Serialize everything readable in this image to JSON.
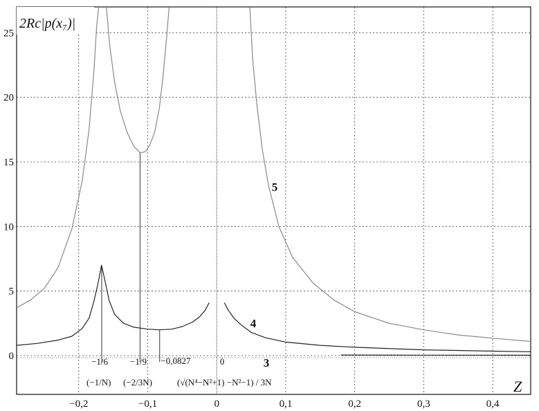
{
  "chart_data": {
    "type": "line",
    "ylabel": "2Rc|p(x₇)|",
    "xlabel": "Z",
    "xlim": [
      -0.29,
      0.455
    ],
    "ylim": [
      -3,
      27
    ],
    "grid": true,
    "x_ticks": [
      {
        "value": -0.2,
        "label": "−0,2"
      },
      {
        "value": -0.1,
        "label": "−0,1"
      },
      {
        "value": 0,
        "label": "0"
      },
      {
        "value": 0.1,
        "label": "0,1"
      },
      {
        "value": 0.2,
        "label": "0,2"
      },
      {
        "value": 0.3,
        "label": "0,3"
      },
      {
        "value": 0.4,
        "label": "0,4"
      }
    ],
    "y_ticks": [
      {
        "value": 0,
        "label": "0"
      },
      {
        "value": 5,
        "label": "5"
      },
      {
        "value": 10,
        "label": "10"
      },
      {
        "value": 15,
        "label": "15"
      },
      {
        "value": 20,
        "label": "20"
      },
      {
        "value": 25,
        "label": "25"
      }
    ],
    "series": [
      {
        "name": "5",
        "color": "#888888",
        "segments": [
          [
            {
              "x": -0.29,
              "y": 3.7
            },
            {
              "x": -0.27,
              "y": 4.3
            },
            {
              "x": -0.25,
              "y": 5.2
            },
            {
              "x": -0.23,
              "y": 6.8
            },
            {
              "x": -0.21,
              "y": 9.8
            },
            {
              "x": -0.195,
              "y": 13.5
            },
            {
              "x": -0.185,
              "y": 17.5
            },
            {
              "x": -0.178,
              "y": 22
            },
            {
              "x": -0.174,
              "y": 25.5
            },
            {
              "x": -0.171,
              "y": 27
            }
          ],
          [
            {
              "x": -0.16,
              "y": 27
            },
            {
              "x": -0.155,
              "y": 24
            },
            {
              "x": -0.148,
              "y": 21.2
            },
            {
              "x": -0.14,
              "y": 19
            },
            {
              "x": -0.13,
              "y": 17.3
            },
            {
              "x": -0.12,
              "y": 16.2
            },
            {
              "x": -0.111,
              "y": 15.7
            },
            {
              "x": -0.103,
              "y": 15.8
            },
            {
              "x": -0.097,
              "y": 16.3
            },
            {
              "x": -0.09,
              "y": 17.3
            },
            {
              "x": -0.083,
              "y": 19.2
            },
            {
              "x": -0.078,
              "y": 21.5
            },
            {
              "x": -0.072,
              "y": 25
            },
            {
              "x": -0.069,
              "y": 27
            }
          ],
          [
            {
              "x": 0.048,
              "y": 27
            },
            {
              "x": 0.052,
              "y": 23
            },
            {
              "x": 0.058,
              "y": 19.5
            },
            {
              "x": 0.066,
              "y": 16
            },
            {
              "x": 0.075,
              "y": 13.2
            },
            {
              "x": 0.09,
              "y": 10
            },
            {
              "x": 0.11,
              "y": 7.6
            },
            {
              "x": 0.14,
              "y": 5.6
            },
            {
              "x": 0.17,
              "y": 4.3
            },
            {
              "x": 0.2,
              "y": 3.4
            },
            {
              "x": 0.25,
              "y": 2.5
            },
            {
              "x": 0.3,
              "y": 2
            },
            {
              "x": 0.35,
              "y": 1.6
            },
            {
              "x": 0.4,
              "y": 1.35
            },
            {
              "x": 0.455,
              "y": 1.1
            }
          ]
        ]
      },
      {
        "name": "4",
        "color": "#222222",
        "segments": [
          [
            {
              "x": -0.29,
              "y": 0.8
            },
            {
              "x": -0.26,
              "y": 0.95
            },
            {
              "x": -0.23,
              "y": 1.2
            },
            {
              "x": -0.21,
              "y": 1.5
            },
            {
              "x": -0.195,
              "y": 2.1
            },
            {
              "x": -0.185,
              "y": 2.9
            },
            {
              "x": -0.178,
              "y": 4.2
            },
            {
              "x": -0.172,
              "y": 5.6
            },
            {
              "x": -0.167,
              "y": 7.0
            },
            {
              "x": -0.162,
              "y": 5.8
            },
            {
              "x": -0.156,
              "y": 4.3
            },
            {
              "x": -0.148,
              "y": 3.2
            },
            {
              "x": -0.135,
              "y": 2.5
            },
            {
              "x": -0.12,
              "y": 2.2
            },
            {
              "x": -0.1,
              "y": 2.05
            },
            {
              "x": -0.083,
              "y": 2.0
            },
            {
              "x": -0.065,
              "y": 2.05
            },
            {
              "x": -0.05,
              "y": 2.25
            },
            {
              "x": -0.035,
              "y": 2.6
            },
            {
              "x": -0.025,
              "y": 3.0
            },
            {
              "x": -0.017,
              "y": 3.5
            },
            {
              "x": -0.011,
              "y": 4.1
            }
          ],
          [
            {
              "x": 0.011,
              "y": 4.1
            },
            {
              "x": 0.017,
              "y": 3.5
            },
            {
              "x": 0.025,
              "y": 2.9
            },
            {
              "x": 0.035,
              "y": 2.4
            },
            {
              "x": 0.05,
              "y": 1.8
            },
            {
              "x": 0.07,
              "y": 1.4
            },
            {
              "x": 0.1,
              "y": 1.05
            },
            {
              "x": 0.15,
              "y": 0.8
            },
            {
              "x": 0.2,
              "y": 0.65
            },
            {
              "x": 0.3,
              "y": 0.45
            },
            {
              "x": 0.4,
              "y": 0.35
            },
            {
              "x": 0.455,
              "y": 0.3
            }
          ]
        ]
      },
      {
        "name": "3",
        "color": "#222222",
        "segments": [
          [
            {
              "x": 0.18,
              "y": 0.05
            },
            {
              "x": 0.3,
              "y": 0.04
            },
            {
              "x": 0.455,
              "y": 0.03
            }
          ]
        ]
      }
    ],
    "markers": [
      {
        "x": -0.1667,
        "y_top": 7.0,
        "label": "−1/6",
        "sub": "(−1/N)"
      },
      {
        "x": -0.1111,
        "y_top": 15.7,
        "label": "−1/9",
        "sub": "(−2/3N)"
      },
      {
        "x": -0.0827,
        "y_top": 2.0,
        "label": "−0,0827",
        "sub": "(√(N⁴−N²+1) −N²−1) / 3N"
      }
    ],
    "annotations": {
      "zero_label": "0",
      "curve_labels": [
        "5",
        "4",
        "3"
      ]
    }
  }
}
